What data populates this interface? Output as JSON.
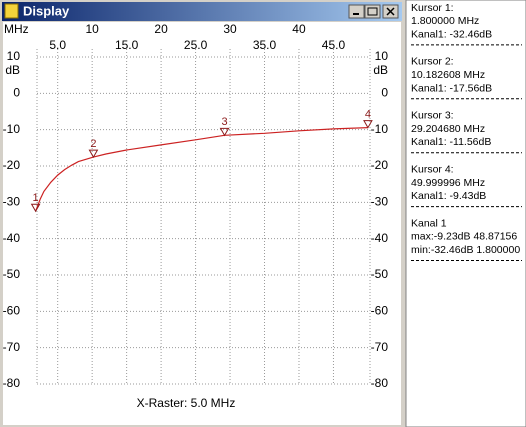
{
  "window": {
    "title": "Display"
  },
  "chart_data": {
    "type": "line",
    "x_label": "MHz",
    "y_label": "dB",
    "xlim": [
      2,
      50.3
    ],
    "ylim": [
      -80,
      10
    ],
    "xticks": [
      10,
      20,
      30,
      40
    ],
    "xticks2": [
      {
        "value": 5,
        "label": "5.0"
      },
      {
        "value": 15,
        "label": "15.0"
      },
      {
        "value": 25,
        "label": "25.0"
      },
      {
        "value": 35,
        "label": "35.0"
      },
      {
        "value": 45,
        "label": "45.0"
      }
    ],
    "yticks": [
      10,
      0,
      -10,
      -20,
      -30,
      -40,
      -50,
      -60,
      -70,
      -80
    ],
    "grid": true,
    "series": [
      {
        "color": "#cc2222",
        "x": [
          1.8,
          2.5,
          3,
          4,
          5,
          6,
          7,
          8,
          10.18,
          12,
          15,
          20,
          25,
          29.2,
          35,
          40,
          45,
          50
        ],
        "values": [
          -32.46,
          -29,
          -27,
          -24.5,
          -22.5,
          -21,
          -19.8,
          -18.8,
          -17.56,
          -16.7,
          -15.6,
          -14.2,
          -12.8,
          -11.56,
          -11,
          -10.3,
          -9.8,
          -9.43
        ]
      }
    ],
    "cursors": [
      {
        "label": "1",
        "x": 1.8,
        "y": -32.46
      },
      {
        "label": "2",
        "x": 10.182608,
        "y": -17.56
      },
      {
        "label": "3",
        "x": 29.20468,
        "y": -11.56
      },
      {
        "label": "4",
        "x": 49.999996,
        "y": -9.43
      }
    ],
    "footer": "X-Raster: 5.0 MHz"
  },
  "side_panel": {
    "blocks": [
      [
        "Kursor 1:",
        "1.800000 MHz",
        "Kanal1: -32.46dB"
      ],
      [
        "Kursor 2:",
        "10.182608 MHz",
        "Kanal1: -17.56dB"
      ],
      [
        "Kursor 3:",
        "29.204680 MHz",
        "Kanal1: -11.56dB"
      ],
      [
        "Kursor 4:",
        "49.999996 MHz",
        "Kanal1: -9.43dB"
      ],
      [
        "Kanal 1",
        "max:-9.23dB 48.87156",
        "min:-32.46dB 1.800000"
      ]
    ]
  }
}
